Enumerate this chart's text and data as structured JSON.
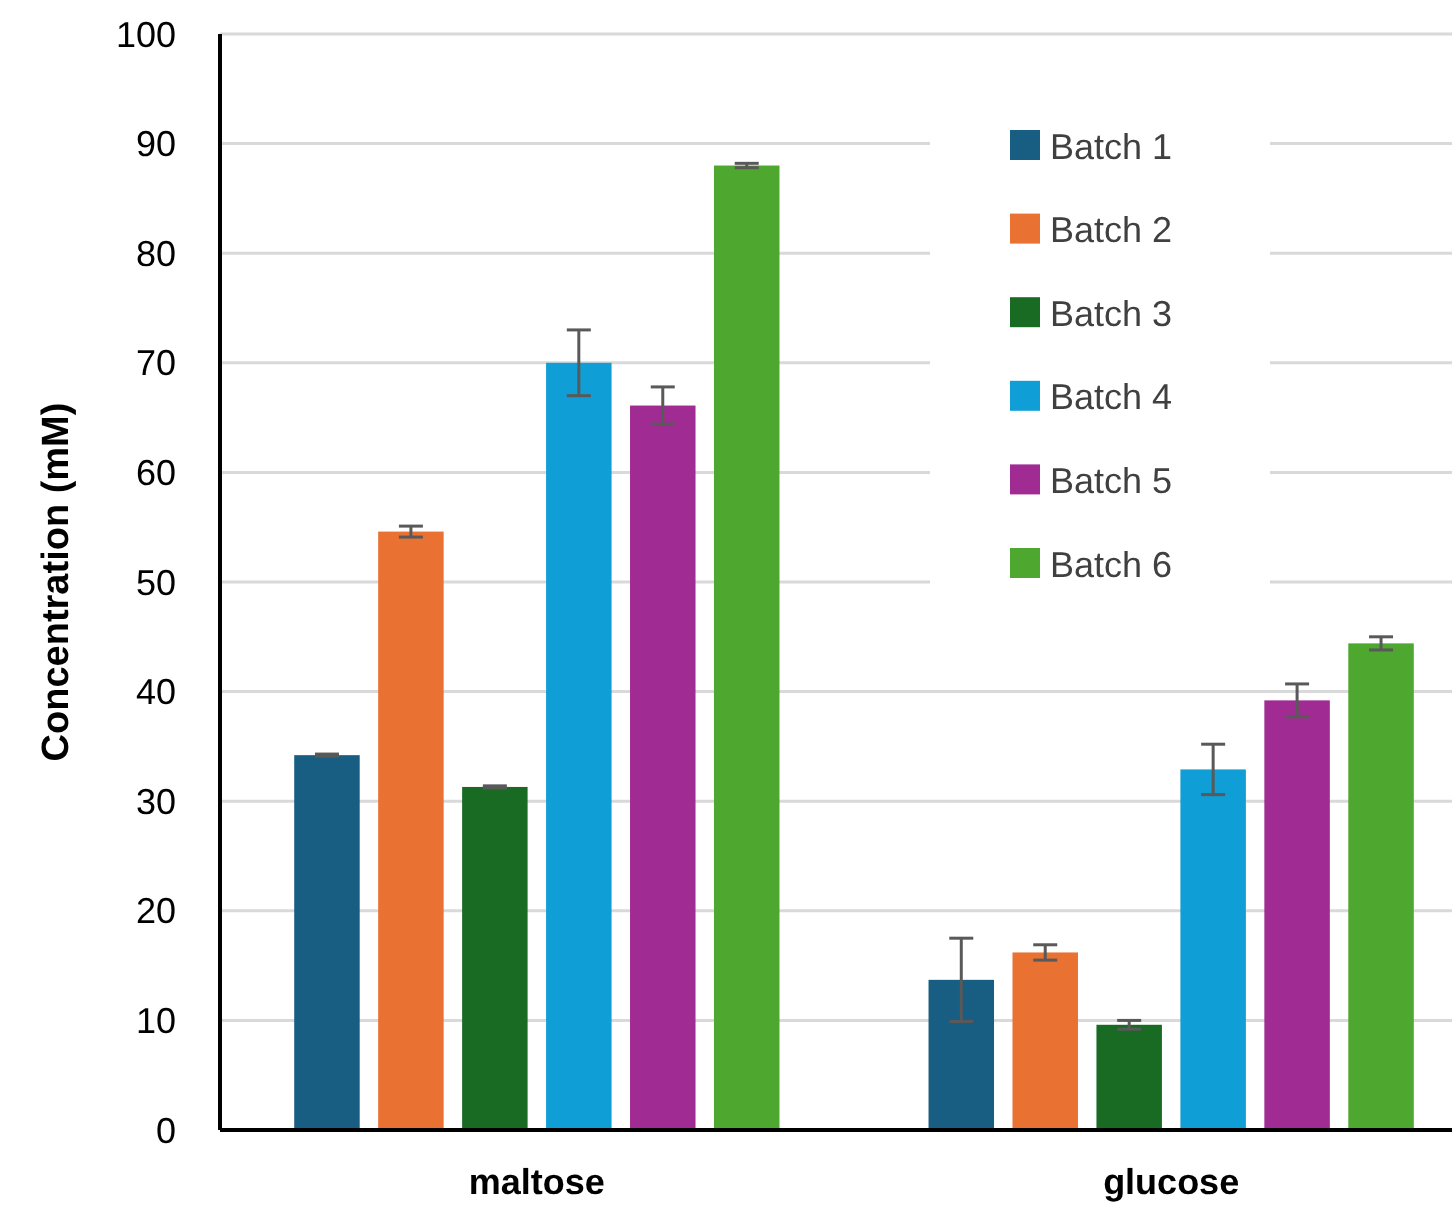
{
  "chart_data": {
    "type": "bar",
    "ylabel": "Concentration (mM)",
    "categories": [
      "maltose",
      "glucose"
    ],
    "series": [
      {
        "name": "Batch 1",
        "color": "#175e82",
        "values": [
          34.2,
          13.7
        ],
        "errors": [
          0.1,
          3.8
        ]
      },
      {
        "name": "Batch 2",
        "color": "#e97132",
        "values": [
          54.6,
          16.2
        ],
        "errors": [
          0.5,
          0.7
        ]
      },
      {
        "name": "Batch 3",
        "color": "#196b24",
        "values": [
          31.3,
          9.6
        ],
        "errors": [
          0.1,
          0.4
        ]
      },
      {
        "name": "Batch 4",
        "color": "#0f9ed5",
        "values": [
          70.0,
          32.9
        ],
        "errors": [
          3.0,
          2.3
        ]
      },
      {
        "name": "Batch 5",
        "color": "#a02b93",
        "values": [
          66.1,
          39.2
        ],
        "errors": [
          1.7,
          1.5
        ]
      },
      {
        "name": "Batch 6",
        "color": "#4ea72e",
        "values": [
          88.0,
          44.4
        ],
        "errors": [
          0.2,
          0.6
        ]
      }
    ],
    "ylim": [
      0,
      100
    ],
    "yticks": [
      0,
      10,
      20,
      30,
      40,
      50,
      60,
      70,
      80,
      90,
      100
    ],
    "grid": "y",
    "legend": "top right"
  }
}
